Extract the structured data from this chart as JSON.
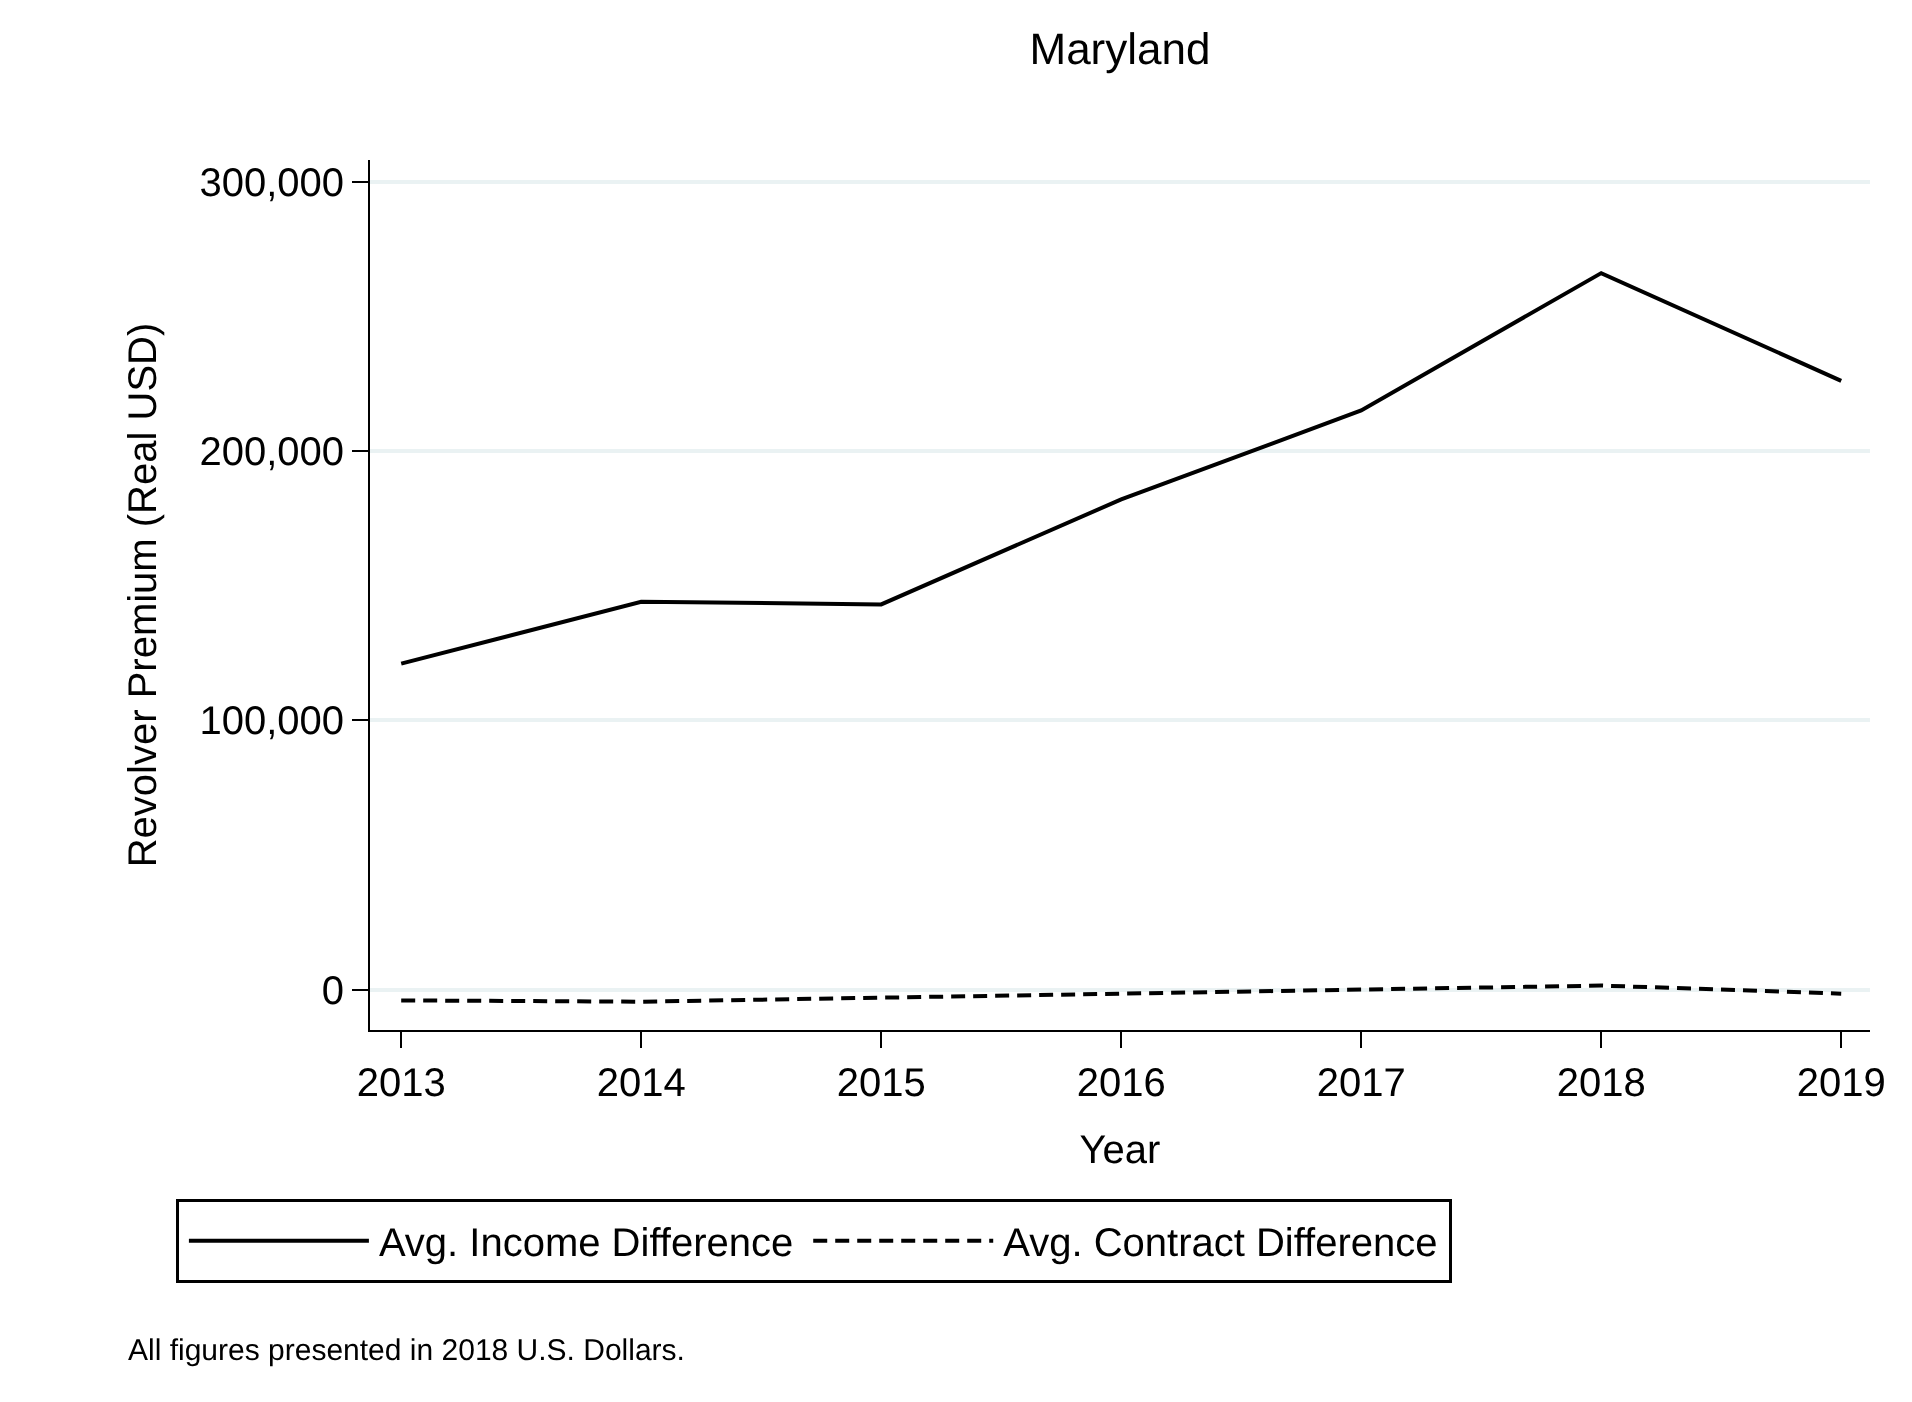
{
  "chart_data": {
    "type": "line",
    "title": "Maryland",
    "xlabel": "Year",
    "ylabel": "Revolver Premium (Real USD)",
    "x": [
      2013,
      2014,
      2015,
      2016,
      2017,
      2018,
      2019
    ],
    "series": [
      {
        "name": "Avg. Income Difference",
        "color": "#000000",
        "line_style": "solid",
        "values": [
          121000,
          144000,
          143000,
          182000,
          215000,
          266000,
          226000
        ]
      },
      {
        "name": "Avg. Contract Difference",
        "color": "#000000",
        "line_style": "dashed",
        "values": [
          -4000,
          -4500,
          -3000,
          -1500,
          0,
          1500,
          -1500
        ]
      }
    ],
    "xlim": [
      2012.87,
      2019.12
    ],
    "xticks": [
      2013,
      2014,
      2015,
      2016,
      2017,
      2018,
      2019
    ],
    "ylim": [
      -15000,
      308000
    ],
    "yticks": [
      {
        "value": 0,
        "label": "0"
      },
      {
        "value": 100000,
        "label": "100,000"
      },
      {
        "value": 200000,
        "label": "200,000"
      },
      {
        "value": 300000,
        "label": "300,000"
      }
    ],
    "grid": "y",
    "legend": "bottom",
    "marker": "none",
    "annotations": [
      "All figures presented in 2018 U.S. Dollars."
    ]
  }
}
